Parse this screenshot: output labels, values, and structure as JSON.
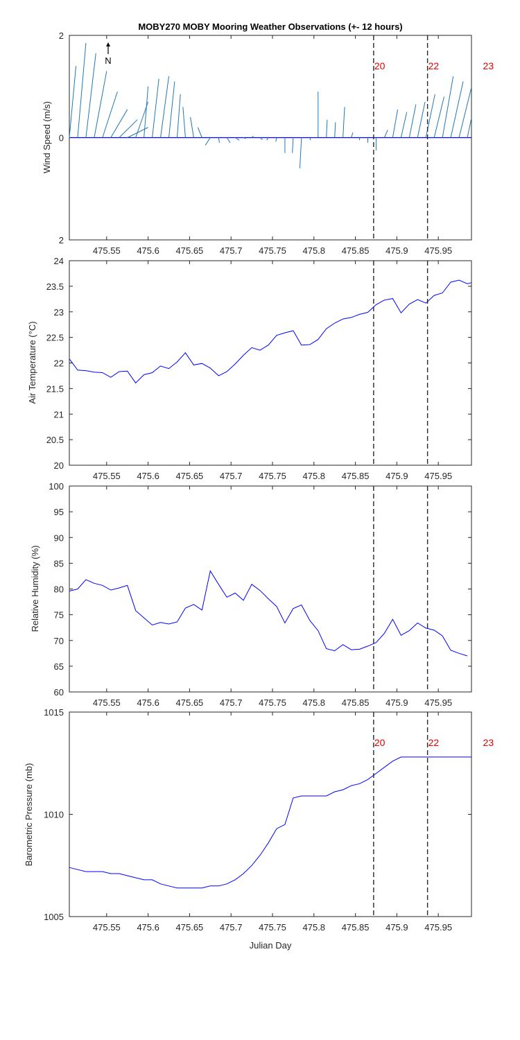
{
  "title": "MOBY270 MOBY Mooring Weather Observations (+- 12 hours)",
  "north_label": "N",
  "colors": {
    "line": "#0000ff",
    "wind": "#1f77b4",
    "marker_label": "#e00000",
    "axis": "#262626",
    "dash": "#262626"
  },
  "x_axis": {
    "label": "Julian Day",
    "range": [
      475.505,
      475.99
    ],
    "ticks": [
      475.55,
      475.6,
      475.65,
      475.7,
      475.75,
      475.8,
      475.85,
      475.9,
      475.95
    ],
    "tick_labels": [
      "475.55",
      "475.6",
      "475.65",
      "475.7",
      "475.75",
      "475.8",
      "475.85",
      "475.9",
      "475.95"
    ]
  },
  "markers": {
    "x": [
      475.872,
      475.937
    ],
    "labels": [
      {
        "text": "20",
        "x": 475.872
      },
      {
        "text": "22",
        "x": 475.937
      },
      {
        "text": "23",
        "x": 476.003
      }
    ]
  },
  "chart_data": [
    {
      "type": "quiver",
      "id": "wind",
      "ylabel": "Wind Speed (m/s)",
      "ylim": [
        -2,
        2
      ],
      "yticks": [
        -2,
        0,
        2
      ],
      "ytick_labels": [
        "2",
        "0",
        "2"
      ],
      "x": [
        475.505,
        475.515,
        475.525,
        475.535,
        475.545,
        475.555,
        475.565,
        475.575,
        475.585,
        475.595,
        475.605,
        475.615,
        475.625,
        475.635,
        475.645,
        475.655,
        475.665,
        475.675,
        475.685,
        475.695,
        475.705,
        475.715,
        475.725,
        475.735,
        475.745,
        475.755,
        475.765,
        475.775,
        475.785,
        475.795,
        475.805,
        475.815,
        475.825,
        475.835,
        475.845,
        475.855,
        475.865,
        475.875,
        475.885,
        475.895,
        475.905,
        475.915,
        475.925,
        475.935,
        475.945,
        475.955,
        475.965,
        475.975,
        475.985
      ],
      "u": [
        0.008,
        0.01,
        0.012,
        0.015,
        0.018,
        0.02,
        0.022,
        0.025,
        0.015,
        0.005,
        0.008,
        0.01,
        0.007,
        0.004,
        -0.003,
        -0.004,
        -0.005,
        -0.006,
        0.001,
        0.004,
        0.005,
        0.003,
        0.002,
        0.003,
        -0.002,
        -0.001,
        0.0,
        -0.001,
        -0.002,
        0.001,
        0.0,
        0.001,
        0.001,
        0.002,
        0.002,
        0.0,
        0.0,
        0.0,
        0.004,
        0.006,
        0.007,
        0.008,
        0.009,
        0.011,
        0.012,
        0.013,
        0.015,
        0.016,
        0.017
      ],
      "v": [
        1.4,
        1.85,
        1.65,
        1.3,
        0.9,
        0.55,
        0.35,
        0.2,
        0.7,
        1.0,
        1.15,
        1.2,
        1.1,
        0.85,
        0.6,
        0.4,
        0.2,
        -0.15,
        -0.1,
        -0.1,
        -0.05,
        -0.02,
        0.03,
        -0.04,
        -0.05,
        -0.08,
        -0.3,
        -0.3,
        -0.6,
        -0.05,
        0.9,
        0.35,
        0.3,
        0.6,
        0.1,
        -0.05,
        -0.1,
        -0.25,
        0.15,
        0.55,
        0.5,
        0.65,
        0.7,
        0.85,
        0.8,
        1.2,
        1.1,
        1.05,
        1.3
      ]
    },
    {
      "type": "line",
      "id": "air_temperature",
      "ylabel": "Air Temperature (°C)",
      "ylim": [
        20,
        24
      ],
      "yticks": [
        20,
        20.5,
        21,
        21.5,
        22,
        22.5,
        23,
        23.5,
        24
      ],
      "ytick_labels": [
        "20",
        "20.5",
        "21",
        "21.5",
        "22",
        "22.5",
        "23",
        "23.5",
        "24"
      ],
      "x": [
        475.505,
        475.515,
        475.525,
        475.535,
        475.545,
        475.555,
        475.565,
        475.575,
        475.585,
        475.595,
        475.605,
        475.615,
        475.625,
        475.635,
        475.645,
        475.655,
        475.665,
        475.675,
        475.685,
        475.695,
        475.705,
        475.715,
        475.725,
        475.735,
        475.745,
        475.755,
        475.765,
        475.775,
        475.785,
        475.795,
        475.805,
        475.815,
        475.825,
        475.835,
        475.845,
        475.855,
        475.865,
        475.875,
        475.885,
        475.895,
        475.905,
        475.915,
        475.925,
        475.935,
        475.945,
        475.955,
        475.965,
        475.975,
        475.985,
        475.99
      ],
      "y": [
        22.08,
        21.86,
        21.85,
        21.82,
        21.81,
        21.72,
        21.83,
        21.84,
        21.61,
        21.77,
        21.81,
        21.94,
        21.89,
        22.02,
        22.2,
        21.96,
        21.99,
        21.9,
        21.75,
        21.83,
        21.98,
        22.15,
        22.3,
        22.25,
        22.35,
        22.54,
        22.59,
        22.63,
        22.35,
        22.36,
        22.46,
        22.67,
        22.78,
        22.86,
        22.89,
        22.95,
        22.99,
        23.14,
        23.23,
        23.26,
        22.98,
        23.15,
        23.24,
        23.17,
        23.32,
        23.37,
        23.58,
        23.62,
        23.55,
        23.57
      ]
    },
    {
      "type": "line",
      "id": "relative_humidity",
      "ylabel": "Relative Humidity (%)",
      "ylim": [
        60,
        100
      ],
      "yticks": [
        60,
        65,
        70,
        75,
        80,
        85,
        90,
        95,
        100
      ],
      "ytick_labels": [
        "60",
        "65",
        "70",
        "75",
        "80",
        "85",
        "90",
        "95",
        "100"
      ],
      "x": [
        475.505,
        475.515,
        475.525,
        475.535,
        475.545,
        475.555,
        475.565,
        475.575,
        475.585,
        475.595,
        475.605,
        475.615,
        475.625,
        475.635,
        475.645,
        475.655,
        475.665,
        475.675,
        475.685,
        475.695,
        475.705,
        475.715,
        475.725,
        475.735,
        475.745,
        475.755,
        475.765,
        475.775,
        475.785,
        475.795,
        475.805,
        475.815,
        475.825,
        475.835,
        475.845,
        475.855,
        475.865,
        475.875,
        475.885,
        475.895,
        475.905,
        475.915,
        475.925,
        475.935,
        475.945,
        475.955,
        475.965,
        475.975,
        475.985
      ],
      "y": [
        79.6,
        80.0,
        81.8,
        81.1,
        80.7,
        79.8,
        80.2,
        80.7,
        75.8,
        74.4,
        73.0,
        73.5,
        73.2,
        73.6,
        76.3,
        77.0,
        75.9,
        83.5,
        80.9,
        78.4,
        79.2,
        77.8,
        80.9,
        79.7,
        78.1,
        76.6,
        73.4,
        76.2,
        76.9,
        73.9,
        71.9,
        68.4,
        68.0,
        69.2,
        68.2,
        68.3,
        68.9,
        69.6,
        71.4,
        74.1,
        71.0,
        71.9,
        73.4,
        72.4,
        72.0,
        70.9,
        68.1,
        67.5,
        67.0
      ]
    },
    {
      "type": "line",
      "id": "barometric_pressure",
      "ylabel": "Barometric Pressure (mb)",
      "ylim": [
        1005,
        1015
      ],
      "yticks": [
        1005,
        1010,
        1015
      ],
      "ytick_labels": [
        "1005",
        "1010",
        "1015"
      ],
      "x": [
        475.505,
        475.515,
        475.525,
        475.535,
        475.545,
        475.555,
        475.565,
        475.575,
        475.585,
        475.595,
        475.605,
        475.615,
        475.625,
        475.635,
        475.645,
        475.655,
        475.665,
        475.675,
        475.685,
        475.695,
        475.705,
        475.715,
        475.725,
        475.735,
        475.745,
        475.755,
        475.765,
        475.775,
        475.785,
        475.795,
        475.805,
        475.815,
        475.825,
        475.835,
        475.845,
        475.855,
        475.865,
        475.875,
        475.885,
        475.895,
        475.905,
        475.915,
        475.925,
        475.935,
        475.945,
        475.955,
        475.965,
        475.975,
        475.985,
        475.99
      ],
      "y": [
        1007.4,
        1007.3,
        1007.2,
        1007.2,
        1007.2,
        1007.1,
        1007.1,
        1007.0,
        1006.9,
        1006.8,
        1006.8,
        1006.6,
        1006.5,
        1006.4,
        1006.4,
        1006.4,
        1006.4,
        1006.5,
        1006.5,
        1006.6,
        1006.8,
        1007.1,
        1007.5,
        1008.0,
        1008.6,
        1009.3,
        1009.5,
        1010.8,
        1010.9,
        1010.9,
        1010.9,
        1010.9,
        1011.1,
        1011.2,
        1011.4,
        1011.5,
        1011.7,
        1012.0,
        1012.3,
        1012.6,
        1012.8,
        1012.8,
        1012.8,
        1012.8,
        1012.8,
        1012.8,
        1012.8,
        1012.8,
        1012.8,
        1012.8
      ]
    }
  ]
}
